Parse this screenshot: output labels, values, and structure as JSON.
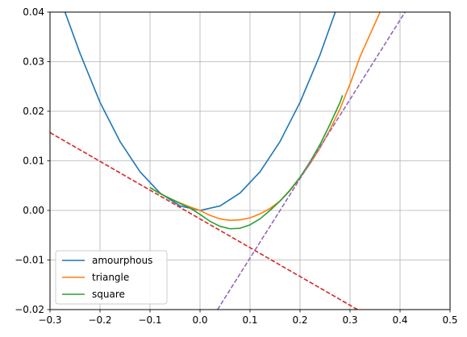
{
  "chart_data": {
    "type": "line",
    "title": "",
    "xlabel": "",
    "ylabel": "",
    "xlim": [
      -0.3,
      0.5
    ],
    "ylim": [
      -0.02,
      0.04
    ],
    "grid": true,
    "legend_position": "lower-left",
    "x_ticks": [
      -0.3,
      -0.2,
      -0.1,
      0.0,
      0.1,
      0.2,
      0.3,
      0.4,
      0.5
    ],
    "x_tick_labels": [
      "−0.3",
      "−0.2",
      "−0.1",
      "0.0",
      "0.1",
      "0.2",
      "0.3",
      "0.4",
      "0.5"
    ],
    "y_ticks": [
      -0.02,
      -0.01,
      0.0,
      0.01,
      0.02,
      0.03,
      0.04
    ],
    "y_tick_labels": [
      "−0.02",
      "−0.01",
      "0.00",
      "0.01",
      "0.02",
      "0.03",
      "0.04"
    ],
    "series": [
      {
        "name": "amourphous",
        "color": "#1f77b4",
        "style": "solid",
        "in_legend": true,
        "x": [
          -0.27,
          -0.24,
          -0.2,
          -0.16,
          -0.12,
          -0.08,
          -0.04,
          0.0,
          0.04,
          0.08,
          0.12,
          0.16,
          0.2,
          0.24,
          0.28,
          0.3
        ],
        "y": [
          0.04,
          0.0317,
          0.0218,
          0.0139,
          0.0078,
          0.0035,
          0.0009,
          0.0,
          0.0009,
          0.0035,
          0.0078,
          0.0139,
          0.0218,
          0.0314,
          0.0427,
          0.049
        ]
      },
      {
        "name": "triangle",
        "color": "#ff7f0e",
        "style": "solid",
        "in_legend": true,
        "x": [
          -0.1,
          -0.08,
          -0.06,
          -0.04,
          -0.02,
          0.0,
          0.02,
          0.04,
          0.06,
          0.08,
          0.1,
          0.12,
          0.14,
          0.16,
          0.18,
          0.2,
          0.22,
          0.24,
          0.26,
          0.28,
          0.3,
          0.32,
          0.34,
          0.36
        ],
        "y": [
          0.0046,
          0.0034,
          0.0024,
          0.0015,
          0.0007,
          0.0,
          -0.001,
          -0.0017,
          -0.002,
          -0.0019,
          -0.0015,
          -0.0007,
          0.0004,
          0.0019,
          0.004,
          0.0066,
          0.0094,
          0.0126,
          0.0163,
          0.0205,
          0.0255,
          0.031,
          0.0355,
          0.04
        ]
      },
      {
        "name": "square",
        "color": "#2ca02c",
        "style": "solid",
        "in_legend": true,
        "x": [
          -0.1,
          -0.08,
          -0.06,
          -0.04,
          -0.02,
          0.0,
          0.02,
          0.04,
          0.06,
          0.08,
          0.1,
          0.12,
          0.14,
          0.16,
          0.18,
          0.2,
          0.22,
          0.24,
          0.26,
          0.28,
          0.285
        ],
        "y": [
          0.0046,
          0.0034,
          0.0024,
          0.0014,
          0.0005,
          -0.0008,
          -0.0022,
          -0.0032,
          -0.0037,
          -0.0036,
          -0.0029,
          -0.0017,
          0.0,
          0.0019,
          0.0041,
          0.0067,
          0.0098,
          0.0133,
          0.0174,
          0.0218,
          0.0232
        ]
      },
      {
        "name": "",
        "color": "#d62728",
        "style": "dashed",
        "in_legend": false,
        "x": [
          -0.3,
          0.315
        ],
        "y": [
          0.0157,
          -0.02
        ]
      },
      {
        "name": "",
        "color": "#9467bd",
        "style": "dashed",
        "in_legend": false,
        "x": [
          0.035,
          0.41
        ],
        "y": [
          -0.02,
          0.04
        ]
      }
    ]
  }
}
